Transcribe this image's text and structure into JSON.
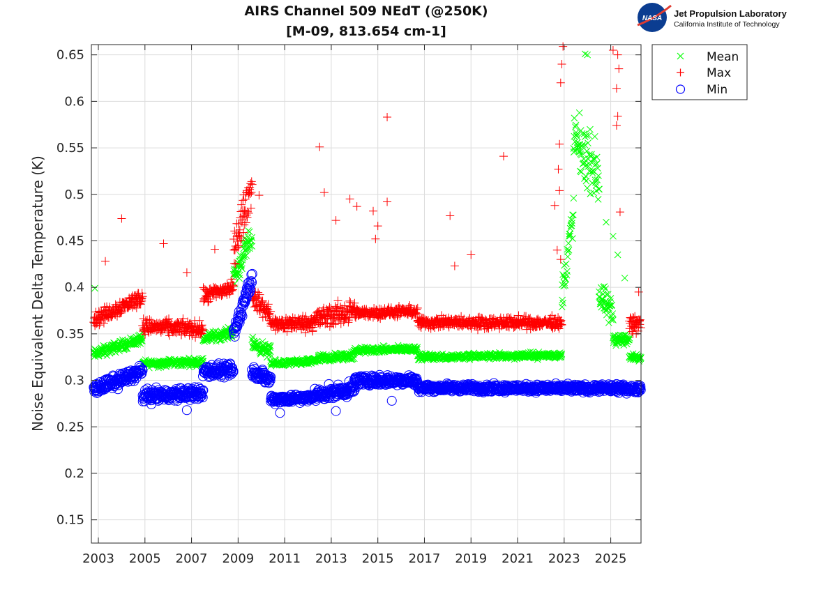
{
  "logo": {
    "org": "Jet Propulsion Laboratory",
    "sub": "California Institute of Technology",
    "badge": "NASA"
  },
  "chart_data": {
    "type": "scatter",
    "title": "AIRS Channel 509 NEdT (@250K)",
    "subtitle": "[M-09, 813.654 cm-1]",
    "xlabel": "",
    "ylabel": "Noise Equivalent Delta Temperature (K)",
    "xlim": [
      2002.7,
      2026.3
    ],
    "ylim": [
      0.125,
      0.661
    ],
    "grid": true,
    "legend_position": "outside-top-right",
    "x_ticks": [
      2003,
      2005,
      2007,
      2009,
      2011,
      2013,
      2015,
      2017,
      2019,
      2021,
      2023,
      2025
    ],
    "x_tick_labels": [
      "2003",
      "2005",
      "2007",
      "2009",
      "2011",
      "2013",
      "2015",
      "2017",
      "2019",
      "2021",
      "2023",
      "2025"
    ],
    "y_ticks": [
      0.15,
      0.2,
      0.25,
      0.3,
      0.35,
      0.4,
      0.45,
      0.5,
      0.55,
      0.6,
      0.65
    ],
    "y_tick_labels": [
      "0.15",
      "0.2",
      "0.25",
      "0.3",
      "0.35",
      "0.4",
      "0.45",
      "0.5",
      "0.55",
      "0.6",
      "0.65"
    ],
    "series": [
      {
        "name": "Mean",
        "marker": "x",
        "color": "#00ff00",
        "segments": [
          {
            "x": [
              2002.8,
              2004.9
            ],
            "y_start": 0.328,
            "y_end": 0.345,
            "spread": 0.008
          },
          {
            "x": [
              2004.9,
              2007.5
            ],
            "y_start": 0.318,
            "y_end": 0.32,
            "spread": 0.006
          },
          {
            "x": [
              2007.5,
              2008.8
            ],
            "y_start": 0.345,
            "y_end": 0.352,
            "spread": 0.008
          },
          {
            "x": [
              2008.8,
              2009.6
            ],
            "y_start": 0.41,
            "y_end": 0.455,
            "spread": 0.02
          },
          {
            "x": [
              2009.6,
              2010.4
            ],
            "y_start": 0.34,
            "y_end": 0.33,
            "spread": 0.01
          },
          {
            "x": [
              2010.4,
              2012.2
            ],
            "y_start": 0.318,
            "y_end": 0.32,
            "spread": 0.005
          },
          {
            "x": [
              2012.2,
              2014.0
            ],
            "y_start": 0.322,
            "y_end": 0.327,
            "spread": 0.007
          },
          {
            "x": [
              2014.0,
              2016.7
            ],
            "y_start": 0.332,
            "y_end": 0.334,
            "spread": 0.005
          },
          {
            "x": [
              2016.7,
              2022.9
            ],
            "y_start": 0.325,
            "y_end": 0.327,
            "spread": 0.005
          },
          {
            "x": [
              2022.9,
              2023.4
            ],
            "y_start": 0.39,
            "y_end": 0.48,
            "spread": 0.03
          },
          {
            "x": [
              2023.4,
              2024.5
            ],
            "y_start": 0.56,
            "y_end": 0.52,
            "spread": 0.045
          },
          {
            "x": [
              2024.5,
              2025.1
            ],
            "y_start": 0.39,
            "y_end": 0.37,
            "spread": 0.025
          },
          {
            "x": [
              2025.1,
              2025.8
            ],
            "y_start": 0.345,
            "y_end": 0.343,
            "spread": 0.01
          },
          {
            "x": [
              2025.8,
              2026.3
            ],
            "y_start": 0.325,
            "y_end": 0.325,
            "spread": 0.005
          }
        ],
        "outliers": [
          [
            2002.85,
            0.399
          ],
          [
            2023.9,
            0.651
          ],
          [
            2024.0,
            0.65
          ],
          [
            2024.8,
            0.47
          ],
          [
            2025.3,
            0.435
          ],
          [
            2025.1,
            0.455
          ],
          [
            2025.6,
            0.41
          ]
        ]
      },
      {
        "name": "Max",
        "marker": "+",
        "color": "#ff0000",
        "segments": [
          {
            "x": [
              2002.8,
              2004.9
            ],
            "y_start": 0.365,
            "y_end": 0.39,
            "spread": 0.012
          },
          {
            "x": [
              2004.9,
              2007.5
            ],
            "y_start": 0.358,
            "y_end": 0.355,
            "spread": 0.012
          },
          {
            "x": [
              2007.5,
              2008.8
            ],
            "y_start": 0.39,
            "y_end": 0.4,
            "spread": 0.012
          },
          {
            "x": [
              2008.8,
              2009.6
            ],
            "y_start": 0.44,
            "y_end": 0.51,
            "spread": 0.03
          },
          {
            "x": [
              2009.6,
              2010.4
            ],
            "y_start": 0.39,
            "y_end": 0.37,
            "spread": 0.015
          },
          {
            "x": [
              2010.4,
              2012.2
            ],
            "y_start": 0.36,
            "y_end": 0.362,
            "spread": 0.012
          },
          {
            "x": [
              2012.2,
              2014.0
            ],
            "y_start": 0.365,
            "y_end": 0.375,
            "spread": 0.018
          },
          {
            "x": [
              2014.0,
              2016.7
            ],
            "y_start": 0.372,
            "y_end": 0.374,
            "spread": 0.008
          },
          {
            "x": [
              2016.7,
              2022.9
            ],
            "y_start": 0.362,
            "y_end": 0.362,
            "spread": 0.009
          },
          {
            "x": [
              2025.8,
              2026.3
            ],
            "y_start": 0.36,
            "y_end": 0.36,
            "spread": 0.012
          }
        ],
        "outliers": [
          [
            2003.3,
            0.428
          ],
          [
            2004.0,
            0.474
          ],
          [
            2005.8,
            0.447
          ],
          [
            2006.8,
            0.416
          ],
          [
            2008.0,
            0.441
          ],
          [
            2009.9,
            0.499
          ],
          [
            2012.5,
            0.551
          ],
          [
            2012.7,
            0.502
          ],
          [
            2013.2,
            0.472
          ],
          [
            2013.8,
            0.495
          ],
          [
            2014.1,
            0.487
          ],
          [
            2014.8,
            0.482
          ],
          [
            2014.9,
            0.452
          ],
          [
            2015.0,
            0.466
          ],
          [
            2015.4,
            0.583
          ],
          [
            2015.4,
            0.492
          ],
          [
            2018.1,
            0.477
          ],
          [
            2018.3,
            0.423
          ],
          [
            2019.0,
            0.435
          ],
          [
            2020.4,
            0.541
          ],
          [
            2022.6,
            0.488
          ],
          [
            2022.8,
            0.554
          ],
          [
            2022.75,
            0.527
          ],
          [
            2022.8,
            0.504
          ],
          [
            2022.85,
            0.62
          ],
          [
            2022.9,
            0.64
          ],
          [
            2022.95,
            0.659
          ],
          [
            2022.85,
            0.43
          ],
          [
            2022.7,
            0.44
          ],
          [
            2025.1,
            0.655
          ],
          [
            2025.3,
            0.65
          ],
          [
            2025.35,
            0.635
          ],
          [
            2025.25,
            0.614
          ],
          [
            2025.3,
            0.584
          ],
          [
            2025.25,
            0.574
          ],
          [
            2025.4,
            0.481
          ],
          [
            2026.2,
            0.395
          ]
        ]
      },
      {
        "name": "Min",
        "marker": "o",
        "color": "#0000ff",
        "segments": [
          {
            "x": [
              2002.8,
              2004.9
            ],
            "y_start": 0.29,
            "y_end": 0.31,
            "spread": 0.01
          },
          {
            "x": [
              2004.9,
              2007.5
            ],
            "y_start": 0.283,
            "y_end": 0.286,
            "spread": 0.01
          },
          {
            "x": [
              2007.5,
              2008.8
            ],
            "y_start": 0.31,
            "y_end": 0.31,
            "spread": 0.01
          },
          {
            "x": [
              2008.8,
              2009.6
            ],
            "y_start": 0.35,
            "y_end": 0.41,
            "spread": 0.015
          },
          {
            "x": [
              2009.6,
              2010.4
            ],
            "y_start": 0.31,
            "y_end": 0.3,
            "spread": 0.01
          },
          {
            "x": [
              2010.4,
              2012.2
            ],
            "y_start": 0.28,
            "y_end": 0.281,
            "spread": 0.007
          },
          {
            "x": [
              2012.2,
              2014.0
            ],
            "y_start": 0.284,
            "y_end": 0.29,
            "spread": 0.01
          },
          {
            "x": [
              2014.0,
              2016.7
            ],
            "y_start": 0.3,
            "y_end": 0.3,
            "spread": 0.008
          },
          {
            "x": [
              2016.7,
              2026.3
            ],
            "y_start": 0.292,
            "y_end": 0.291,
            "spread": 0.006
          }
        ],
        "outliers": [
          [
            2010.8,
            0.265
          ],
          [
            2013.2,
            0.267
          ],
          [
            2015.6,
            0.278
          ],
          [
            2006.8,
            0.268
          ]
        ]
      }
    ]
  }
}
